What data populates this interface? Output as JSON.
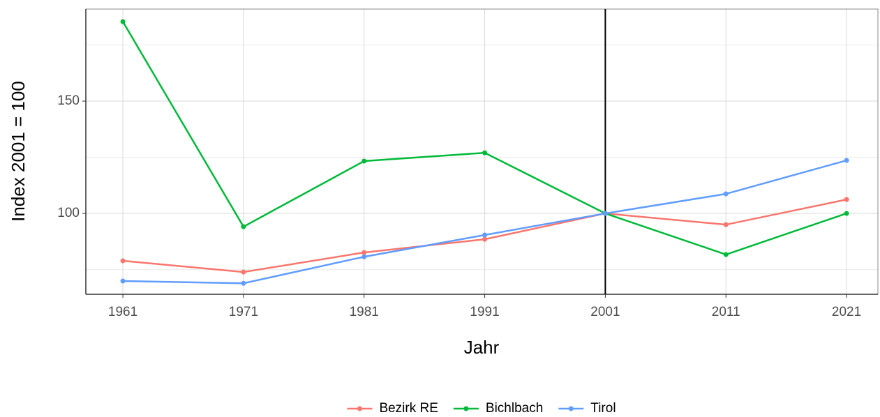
{
  "chart_data": {
    "type": "line",
    "x_label": "Jahr",
    "y_label": "Index 2001 = 100",
    "x": [
      1961,
      1971,
      1981,
      1991,
      2001,
      2011,
      2021
    ],
    "series": [
      {
        "name": "Bezirk RE",
        "color": "#F8766D",
        "values": [
          78.9,
          73.9,
          82.6,
          88.5,
          100,
          95.0,
          106.2
        ]
      },
      {
        "name": "Bichlbach",
        "color": "#00BA38",
        "values": [
          185.4,
          94.1,
          123.3,
          127.0,
          100,
          81.7,
          100
        ]
      },
      {
        "name": "Tirol",
        "color": "#619CFF",
        "values": [
          69.9,
          68.9,
          80.7,
          90.4,
          100,
          108.7,
          123.6
        ]
      }
    ],
    "xlim": [
      1957.93,
      2023.6
    ],
    "xticks": [
      1961,
      1971,
      1981,
      1991,
      2001,
      2011,
      2021
    ],
    "ylim": [
      64,
      191
    ],
    "yticks": [
      100,
      150
    ],
    "minor_yticks": [
      75,
      125,
      175
    ],
    "vline": 2001,
    "grid": true,
    "legend": "bottom"
  }
}
